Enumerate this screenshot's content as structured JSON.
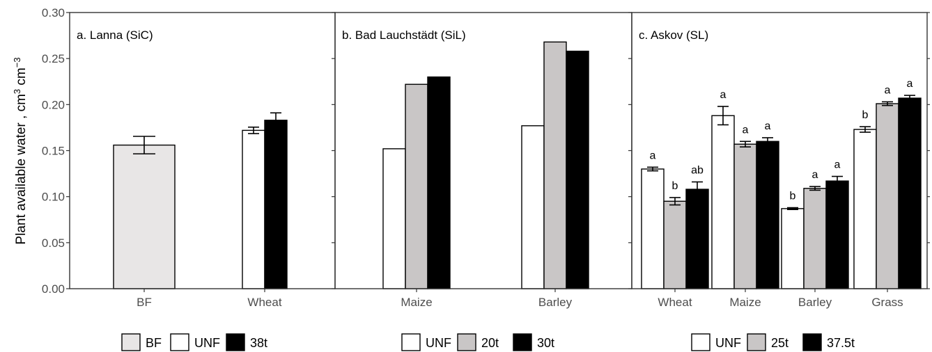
{
  "chart_data": {
    "type": "bar",
    "ylabel": "Plant available water , cm",
    "ylabel_unit_a": "3",
    "ylabel_unit_b": " cm",
    "ylabel_unit_c": "−3",
    "ylim": [
      0,
      0.3
    ],
    "yticks": [
      "0.00",
      "0.05",
      "0.10",
      "0.15",
      "0.20",
      "0.25",
      "0.30"
    ],
    "colors": {
      "BF": "#e8e6e6",
      "UNF": "#ffffff",
      "gray": "#c9c6c6",
      "black": "#000000"
    },
    "panels": [
      {
        "title": "a. Lanna (SiC)",
        "categories": [
          "BF",
          "Wheat"
        ],
        "legend": [
          {
            "name": "BF",
            "color": "#e8e6e6"
          },
          {
            "name": "UNF",
            "color": "#ffffff"
          },
          {
            "name": "38t",
            "color": "#000000"
          }
        ],
        "groups": [
          {
            "category": "BF",
            "bars": [
              {
                "series": "BF",
                "value": 0.156,
                "err": 0.0095,
                "color": "#e8e6e6"
              }
            ]
          },
          {
            "category": "Wheat",
            "bars": [
              {
                "series": "UNF",
                "value": 0.172,
                "err": 0.0035,
                "color": "#ffffff"
              },
              {
                "series": "38t",
                "value": 0.183,
                "err": 0.008,
                "color": "#000000"
              }
            ]
          }
        ]
      },
      {
        "title": "b. Bad Lauchstädt (SiL)",
        "categories": [
          "Maize",
          "Barley"
        ],
        "legend": [
          {
            "name": "UNF",
            "color": "#ffffff"
          },
          {
            "name": "20t",
            "color": "#c9c6c6"
          },
          {
            "name": "30t",
            "color": "#000000"
          }
        ],
        "groups": [
          {
            "category": "Maize",
            "bars": [
              {
                "series": "UNF",
                "value": 0.152,
                "color": "#ffffff"
              },
              {
                "series": "20t",
                "value": 0.222,
                "color": "#c9c6c6"
              },
              {
                "series": "30t",
                "value": 0.23,
                "color": "#000000"
              }
            ]
          },
          {
            "category": "Barley",
            "bars": [
              {
                "series": "UNF",
                "value": 0.177,
                "color": "#ffffff"
              },
              {
                "series": "20t",
                "value": 0.268,
                "color": "#c9c6c6"
              },
              {
                "series": "30t",
                "value": 0.258,
                "color": "#000000"
              }
            ]
          }
        ]
      },
      {
        "title": "c. Askov (SL)",
        "categories": [
          "Wheat",
          "Maize",
          "Barley",
          "Grass"
        ],
        "legend": [
          {
            "name": "UNF",
            "color": "#ffffff"
          },
          {
            "name": "25t",
            "color": "#c9c6c6"
          },
          {
            "name": "37.5t",
            "color": "#000000"
          }
        ],
        "groups": [
          {
            "category": "Wheat",
            "bars": [
              {
                "series": "UNF",
                "value": 0.13,
                "err": 0.002,
                "sig": "a",
                "color": "#ffffff"
              },
              {
                "series": "25t",
                "value": 0.095,
                "err": 0.004,
                "sig": "b",
                "color": "#c9c6c6"
              },
              {
                "series": "37.5t",
                "value": 0.108,
                "err": 0.008,
                "sig": "ab",
                "color": "#000000"
              }
            ]
          },
          {
            "category": "Maize",
            "bars": [
              {
                "series": "UNF",
                "value": 0.188,
                "err": 0.01,
                "sig": "a",
                "color": "#ffffff"
              },
              {
                "series": "25t",
                "value": 0.157,
                "err": 0.003,
                "sig": "a",
                "color": "#c9c6c6"
              },
              {
                "series": "37.5t",
                "value": 0.16,
                "err": 0.004,
                "sig": "a",
                "color": "#000000"
              }
            ]
          },
          {
            "category": "Barley",
            "bars": [
              {
                "series": "UNF",
                "value": 0.087,
                "err": 0.001,
                "sig": "b",
                "color": "#ffffff"
              },
              {
                "series": "25t",
                "value": 0.109,
                "err": 0.002,
                "sig": "a",
                "color": "#c9c6c6"
              },
              {
                "series": "37.5t",
                "value": 0.117,
                "err": 0.005,
                "sig": "a",
                "color": "#000000"
              }
            ]
          },
          {
            "category": "Grass",
            "bars": [
              {
                "series": "UNF",
                "value": 0.173,
                "err": 0.003,
                "sig": "b",
                "color": "#ffffff"
              },
              {
                "series": "25t",
                "value": 0.201,
                "err": 0.002,
                "sig": "a",
                "color": "#c9c6c6"
              },
              {
                "series": "37.5t",
                "value": 0.207,
                "err": 0.003,
                "sig": "a",
                "color": "#000000"
              }
            ]
          }
        ]
      }
    ]
  }
}
